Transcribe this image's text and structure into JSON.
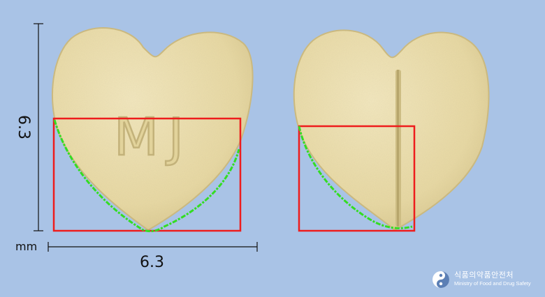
{
  "dimensions": {
    "height_value": "6.3",
    "width_value": "6.3",
    "unit": "mm"
  },
  "pill_front": {
    "imprint": "MJ"
  },
  "logo": {
    "korean": "식품의약품안전처",
    "english": "Ministry of Food and Drug Safety"
  },
  "colors": {
    "background": "#a9c3e6",
    "tablet": "#eadcaa",
    "bounding_box": "#ee1c1c",
    "contour": "#33dd22"
  }
}
